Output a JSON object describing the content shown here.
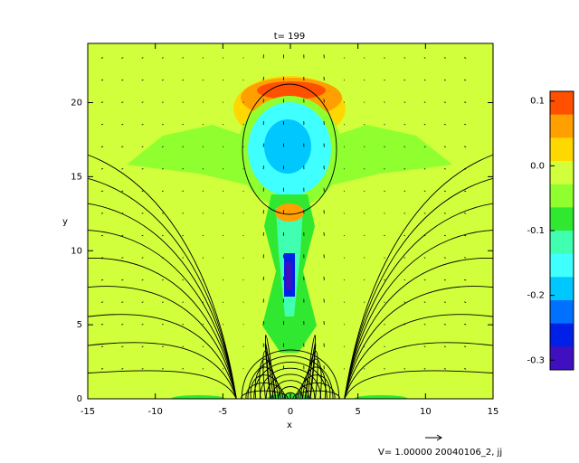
{
  "chart_data": {
    "type": "contour",
    "title": "t= 199",
    "xlabel": "x",
    "ylabel": "y",
    "xlim": [
      -15,
      15
    ],
    "ylim": [
      0,
      24
    ],
    "xticks": [
      -15,
      -10,
      -5,
      0,
      5,
      10,
      15
    ],
    "yticks": [
      0,
      5,
      10,
      15,
      20
    ],
    "colorbar": {
      "lim": [
        -0.315,
        0.115
      ],
      "ticks": [
        0.1,
        {
          "value": 0,
          "label": "0.0"
        },
        -0.1,
        -0.2,
        -0.3
      ],
      "colors": [
        "#ff5000",
        "#ffa000",
        "#ffd800",
        "#d2ff3c",
        "#90ff30",
        "#30e830",
        "#40ffb0",
        "#40ffff",
        "#00c8ff",
        "#0070ff",
        "#0020e8",
        "#4010c0"
      ]
    },
    "footer": "V= 1.00000 20040106_2, jj"
  }
}
